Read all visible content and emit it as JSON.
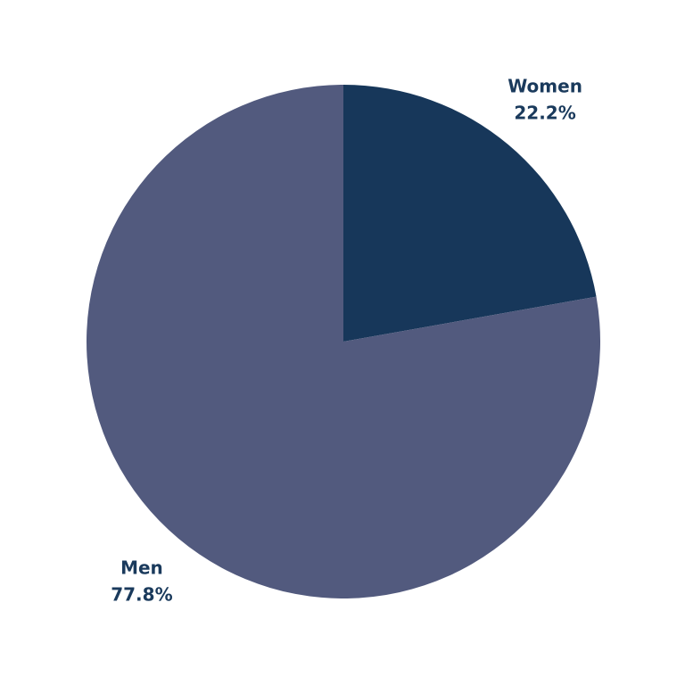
{
  "chart_data": {
    "type": "pie",
    "categories": [
      "Women",
      "Men"
    ],
    "values": [
      22.2,
      77.8
    ],
    "value_labels": [
      "22.2%",
      "77.8%"
    ],
    "colors": [
      "#17375a",
      "#525a7e"
    ]
  }
}
